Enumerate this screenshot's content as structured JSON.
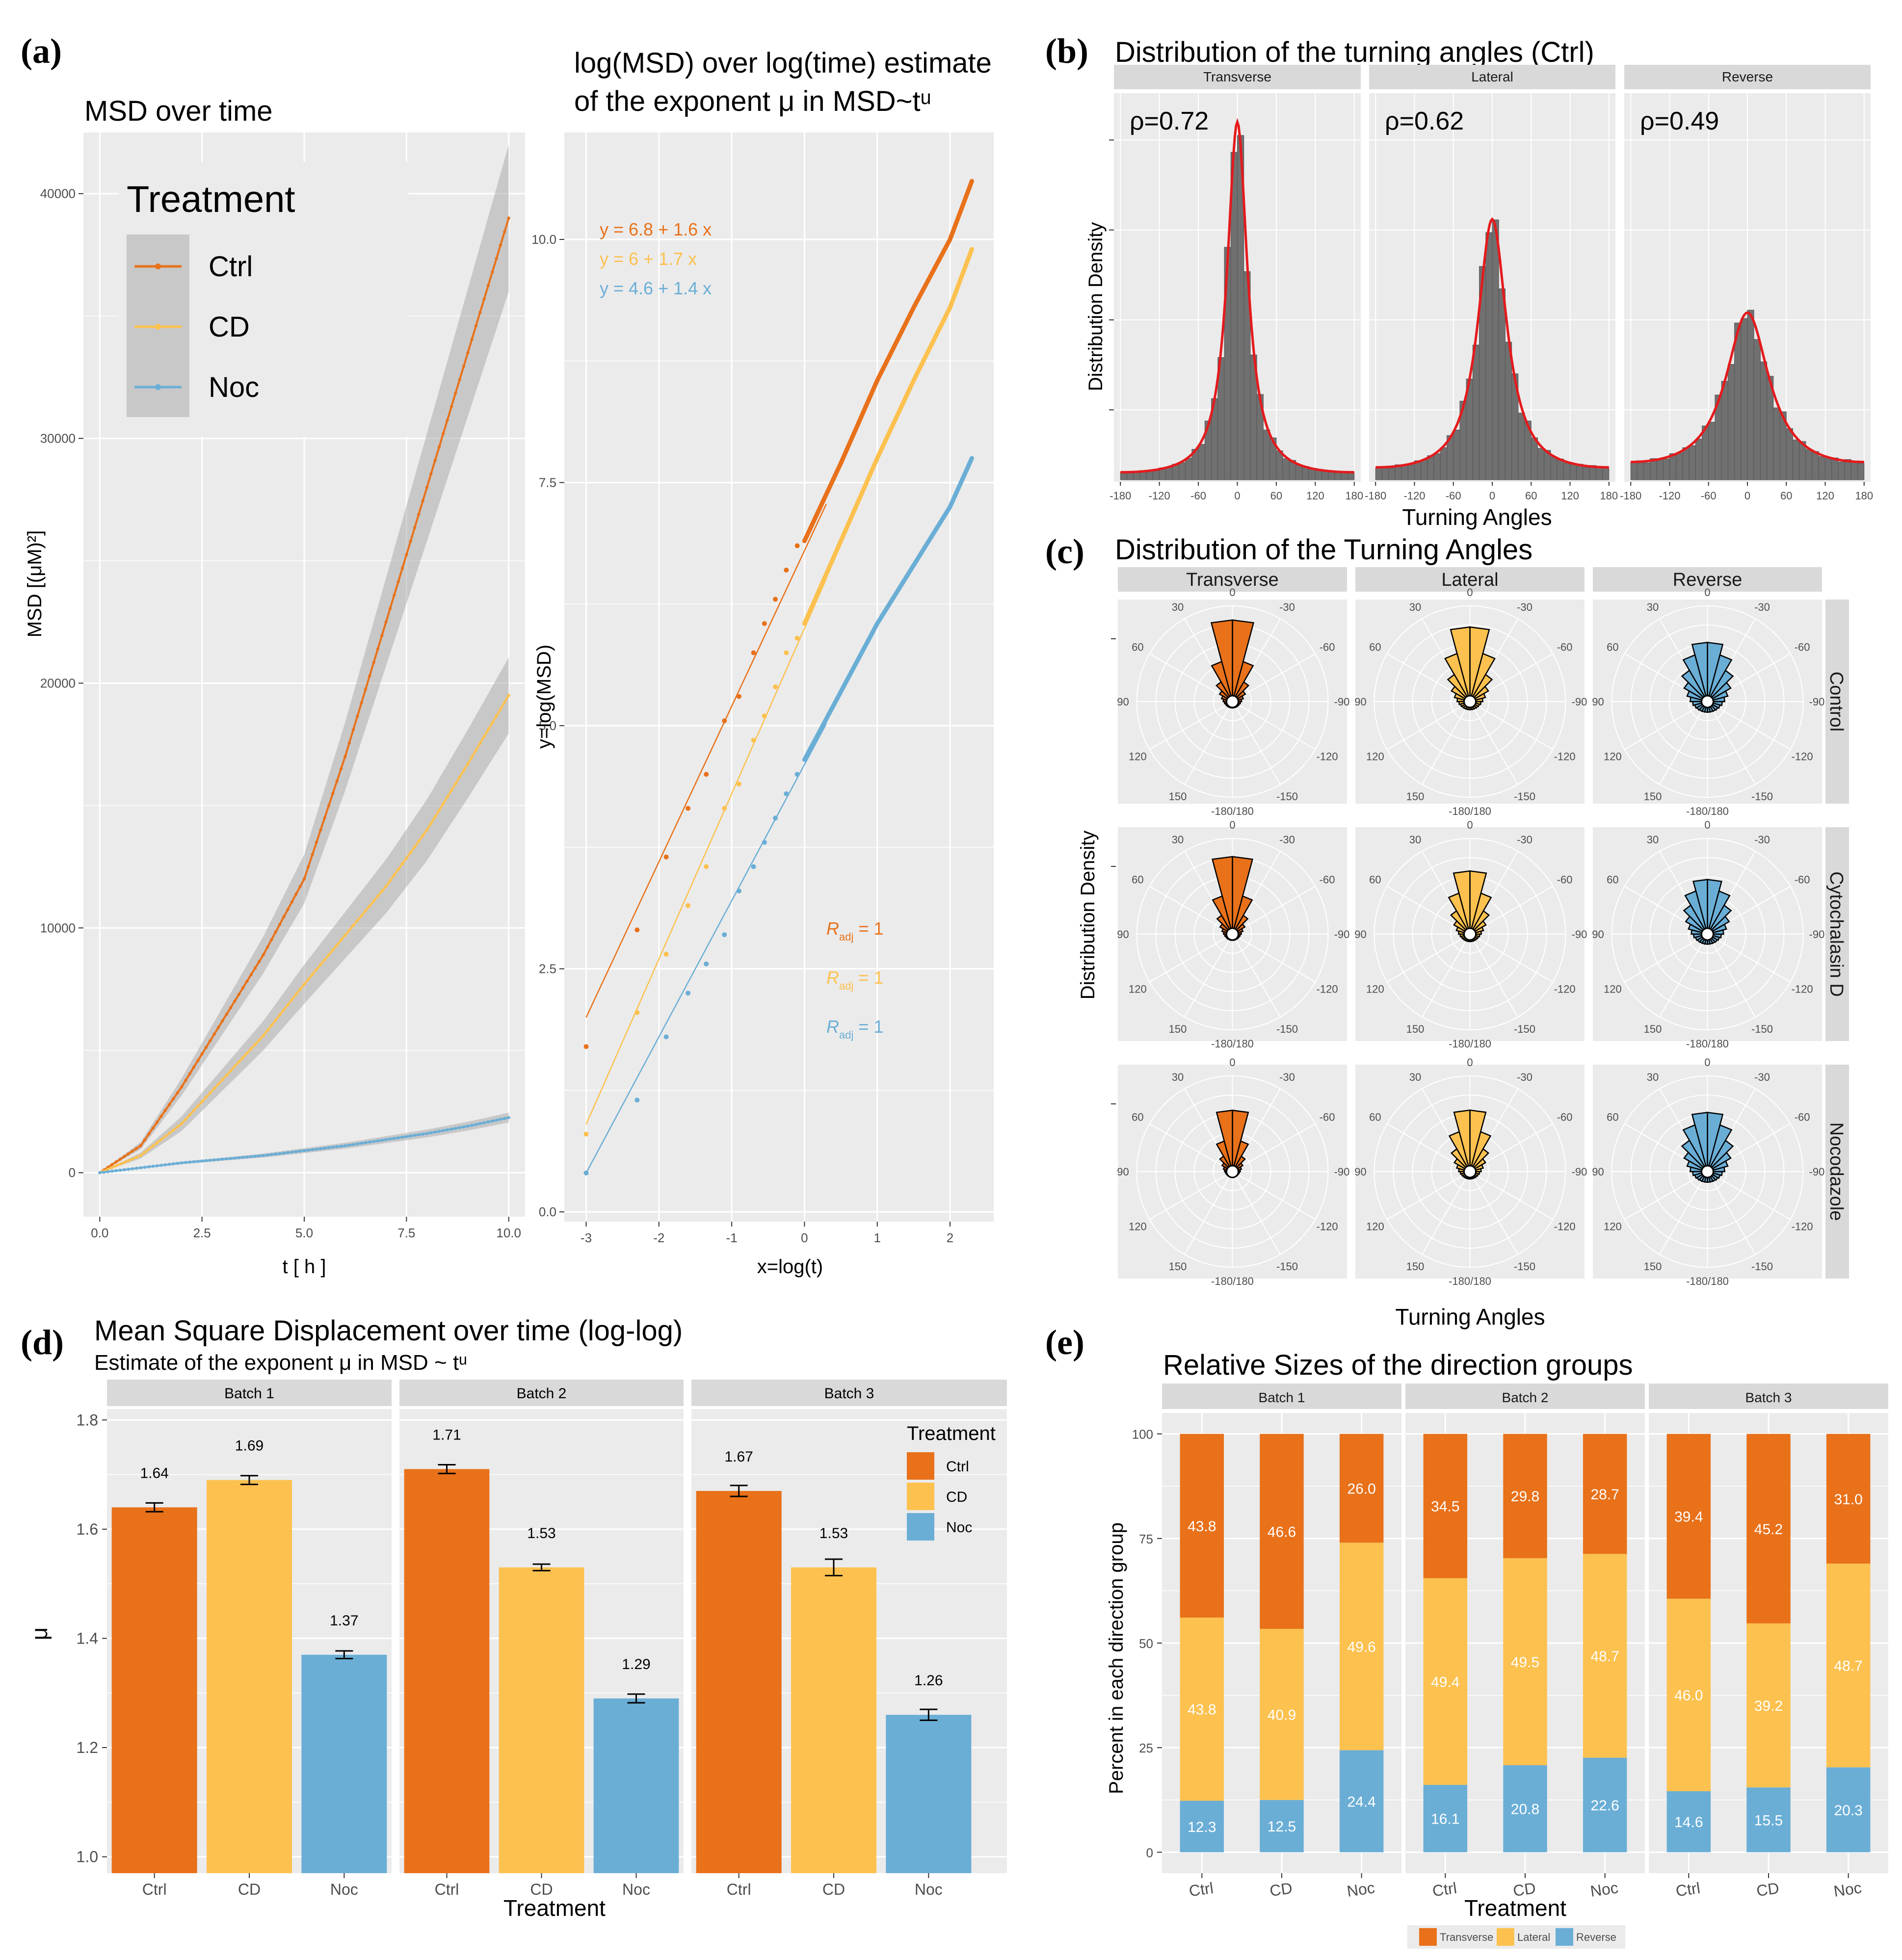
{
  "colors": {
    "ctrl": "#E8711A",
    "cd": "#FCC14F",
    "noc": "#6AAED6",
    "panel_bg": "#EBEBEB",
    "grid": "#FFFFFF",
    "strip": "#D9D9D9",
    "hist": "#707070",
    "fit": "#E41A1C"
  },
  "panel_a": {
    "label": "(a)",
    "left": {
      "title": "MSD over time",
      "ylabel": "MSD [(μM)²]",
      "xlabel": "t [ h ]",
      "legend_title": "Treatment",
      "legend": [
        "Ctrl",
        "CD",
        "Noc"
      ]
    },
    "right": {
      "title_line1": "log(MSD) over log(time) estimate",
      "title_line2": "of the exponent μ in MSD~tᵘ",
      "ylabel": "y=log(MSD)",
      "xlabel": "x=log(t)",
      "equations": [
        "y = 6.8 + 1.6 x",
        "y = 6 + 1.7 x",
        "y = 4.6 + 1.4 x"
      ],
      "r2_main": "R",
      "r2_sub": "adj",
      "r2_value": " = 1"
    }
  },
  "panel_b": {
    "label": "(b)",
    "title": "Distribution of the turning angles (Ctrl)",
    "ylabel": "Distribution Density",
    "xlabel": "Turning Angles",
    "facets": [
      "Transverse",
      "Lateral",
      "Reverse"
    ],
    "rho": [
      "ρ=0.72",
      "ρ=0.62",
      "ρ=0.49"
    ]
  },
  "panel_c": {
    "label": "(c)",
    "title": "Distribution of the Turning Angles",
    "ylabel": "Distribution Density",
    "xlabel": "Turning Angles",
    "cols": [
      "Transverse",
      "Lateral",
      "Reverse"
    ],
    "rows": [
      "Control",
      "Cytochalasin D",
      "Nocodazole"
    ]
  },
  "panel_d": {
    "label": "(d)",
    "title": "Mean Square Displacement over time (log-log)",
    "subtitle": "Estimate of the exponent μ in MSD ~ tᵘ",
    "ylabel": "μ",
    "xlabel": "Treatment",
    "legend_title": "Treatment",
    "legend": [
      "Ctrl",
      "CD",
      "Noc"
    ]
  },
  "panel_e": {
    "label": "(e)",
    "title": "Relative Sizes of the direction groups",
    "ylabel": "Percent in each direction group",
    "xlabel": "Treatment",
    "legend": [
      "Transverse",
      "Lateral",
      "Reverse"
    ]
  },
  "chart_data": [
    {
      "id": "a_left",
      "type": "line",
      "title": "MSD over time",
      "xlabel": "t [ h ]",
      "ylabel": "MSD [(μM)²]",
      "xlim": [
        -0.4,
        10.4
      ],
      "ylim": [
        -1800,
        42500
      ],
      "xticks": [
        0,
        2.5,
        5,
        7.5,
        10
      ],
      "xtick_labels": [
        "0.0",
        "2.5",
        "5.0",
        "7.5",
        "10.0"
      ],
      "yticks": [
        0,
        10000,
        20000,
        30000,
        40000
      ],
      "ytick_labels": [
        "0",
        "10000",
        "20000",
        "30000",
        "40000"
      ],
      "x": [
        0,
        1,
        2,
        3,
        4,
        5,
        6,
        7,
        8,
        9,
        10
      ],
      "series": [
        {
          "name": "Ctrl",
          "color": "#E8711A",
          "values": [
            0,
            1100,
            3500,
            6200,
            8900,
            12000,
            17000,
            22500,
            28000,
            33500,
            39000
          ],
          "band": [
            0,
            150,
            350,
            550,
            750,
            1000,
            1400,
            1800,
            2200,
            2600,
            3000
          ]
        },
        {
          "name": "CD",
          "color": "#FCC14F",
          "values": [
            0,
            700,
            2000,
            3800,
            5600,
            7700,
            9700,
            11700,
            14000,
            16700,
            19500
          ],
          "band": [
            0,
            120,
            300,
            450,
            600,
            800,
            950,
            1100,
            1250,
            1400,
            1550
          ]
        },
        {
          "name": "Noc",
          "color": "#6AAED6",
          "values": [
            0,
            200,
            400,
            550,
            700,
            900,
            1100,
            1350,
            1600,
            1900,
            2250
          ],
          "band": [
            0,
            30,
            50,
            60,
            80,
            100,
            120,
            140,
            160,
            180,
            200
          ]
        }
      ]
    },
    {
      "id": "a_right",
      "type": "scatter",
      "title": "log(MSD) over log(time) estimate of the exponent μ in MSD~tᵘ",
      "xlabel": "x=log(t)",
      "ylabel": "y=log(MSD)",
      "xlim": [
        -3.3,
        2.6
      ],
      "ylim": [
        -0.1,
        11.1
      ],
      "xticks": [
        -3,
        -2,
        -1,
        0,
        1,
        2
      ],
      "xtick_labels": [
        "-3",
        "-2",
        "-1",
        "0",
        "1",
        "2"
      ],
      "yticks": [
        0,
        2.5,
        5,
        7.5,
        10
      ],
      "ytick_labels": [
        "0.0",
        "2.5",
        "5.0",
        "7.5",
        "10.0"
      ],
      "series": [
        {
          "name": "Ctrl",
          "color": "#E8711A",
          "intercept": 6.8,
          "slope": 1.6,
          "x": [
            -3.0,
            -2.3,
            -1.9,
            -1.6,
            -1.35,
            -1.1,
            -0.9,
            -0.7,
            -0.55,
            -0.4,
            -0.25,
            -0.1
          ],
          "y": [
            1.7,
            2.9,
            3.65,
            4.15,
            4.5,
            5.05,
            5.3,
            5.75,
            6.05,
            6.3,
            6.6,
            6.85
          ]
        },
        {
          "name": "CD",
          "color": "#FCC14F",
          "intercept": 6.0,
          "slope": 1.7,
          "x": [
            -3.0,
            -2.3,
            -1.9,
            -1.6,
            -1.35,
            -1.1,
            -0.9,
            -0.7,
            -0.55,
            -0.4,
            -0.25,
            -0.1
          ],
          "y": [
            0.8,
            2.05,
            2.65,
            3.15,
            3.55,
            4.15,
            4.4,
            4.85,
            5.1,
            5.4,
            5.75,
            5.9
          ]
        },
        {
          "name": "Noc",
          "color": "#6AAED6",
          "intercept": 4.6,
          "slope": 1.4,
          "x": [
            -3.0,
            -2.3,
            -1.9,
            -1.6,
            -1.35,
            -1.1,
            -0.9,
            -0.7,
            -0.55,
            -0.4,
            -0.25,
            -0.1
          ],
          "y": [
            0.4,
            1.15,
            1.8,
            2.25,
            2.55,
            2.85,
            3.3,
            3.55,
            3.8,
            4.05,
            4.3,
            4.5
          ]
        }
      ]
    },
    {
      "id": "b",
      "type": "bar",
      "title": "Distribution of the turning angles (Ctrl)",
      "xlabel": "Turning Angles",
      "ylabel": "Distribution Density",
      "xlim": [
        -190,
        190
      ],
      "ylim": [
        0,
        1.08
      ],
      "xticks": [
        -180,
        -120,
        -60,
        0,
        60,
        120,
        180
      ],
      "xtick_labels": [
        "-180",
        "-120",
        "-60",
        "0",
        "60",
        "120",
        "180"
      ],
      "bin_width": 10,
      "facets": [
        {
          "name": "Transverse",
          "rho": 0.72,
          "peak": 1.0
        },
        {
          "name": "Lateral",
          "rho": 0.62,
          "peak": 0.73
        },
        {
          "name": "Reverse",
          "rho": 0.49,
          "peak": 0.47
        }
      ]
    },
    {
      "id": "c",
      "type": "bar",
      "title": "Distribution of the Turning Angles",
      "subtype": "polar",
      "angle_labels": [
        "0",
        "-30",
        "-60",
        "-90",
        "-120",
        "-150",
        "-180/180",
        "150",
        "120",
        "90",
        "60",
        "30"
      ],
      "angles": [
        0,
        -30,
        -60,
        -90,
        -120,
        -150,
        180,
        150,
        120,
        90,
        60,
        30
      ],
      "rows": [
        "Control",
        "Cytochalasin D",
        "Nocodazole"
      ],
      "cols": [
        "Transverse",
        "Lateral",
        "Reverse"
      ],
      "colors": [
        "#E8711A",
        "#FCC14F",
        "#6AAED6"
      ],
      "rho": [
        [
          0.72,
          0.62,
          0.49
        ],
        [
          0.72,
          0.62,
          0.49
        ],
        [
          0.72,
          0.62,
          0.49
        ]
      ],
      "scale": [
        [
          1.0,
          0.85,
          0.65
        ],
        [
          0.95,
          0.72,
          0.6
        ],
        [
          0.75,
          0.7,
          0.65
        ]
      ]
    },
    {
      "id": "d",
      "type": "bar",
      "title": "Mean Square Displacement over time (log-log)",
      "xlabel": "Treatment",
      "ylabel": "μ",
      "ylim": [
        0.97,
        1.82
      ],
      "yticks": [
        1.0,
        1.2,
        1.4,
        1.6,
        1.8
      ],
      "ytick_labels": [
        "1.0",
        "1.2",
        "1.4",
        "1.6",
        "1.8"
      ],
      "categories": [
        "Ctrl",
        "CD",
        "Noc"
      ],
      "facets": [
        {
          "name": "Batch 1",
          "values": [
            1.64,
            1.69,
            1.37
          ],
          "labels": [
            "1.64",
            "1.69",
            "1.37"
          ],
          "err": [
            0.008,
            0.008,
            0.007
          ]
        },
        {
          "name": "Batch 2",
          "values": [
            1.71,
            1.53,
            1.29
          ],
          "labels": [
            "1.71",
            "1.53",
            "1.29"
          ],
          "err": [
            0.008,
            0.006,
            0.008
          ]
        },
        {
          "name": "Batch 3",
          "values": [
            1.67,
            1.53,
            1.26
          ],
          "labels": [
            "1.67",
            "1.53",
            "1.26"
          ],
          "err": [
            0.01,
            0.015,
            0.01
          ]
        }
      ]
    },
    {
      "id": "e",
      "type": "bar",
      "stacked": true,
      "title": "Relative Sizes of the direction groups",
      "xlabel": "Treatment",
      "ylabel": "Percent in each direction group",
      "ylim": [
        -5,
        105
      ],
      "yticks": [
        0,
        25,
        50,
        75,
        100
      ],
      "ytick_labels": [
        "0",
        "25",
        "50",
        "75",
        "100"
      ],
      "categories": [
        "Ctrl",
        "CD",
        "Noc"
      ],
      "stack_order": [
        "Reverse",
        "Lateral",
        "Transverse"
      ],
      "facets": [
        {
          "name": "Batch 1",
          "Transverse": [
            43.8,
            46.6,
            26.0
          ],
          "Lateral": [
            43.8,
            40.9,
            49.6
          ],
          "Reverse": [
            12.3,
            12.5,
            24.4
          ],
          "T_labels": [
            "43.8",
            "46.6",
            "26.0"
          ],
          "L_labels": [
            "43.8",
            "40.9",
            "49.6"
          ],
          "R_labels": [
            "12.3",
            "12.5",
            "24.4"
          ]
        },
        {
          "name": "Batch 2",
          "Transverse": [
            34.5,
            29.8,
            28.7
          ],
          "Lateral": [
            49.4,
            49.5,
            48.7
          ],
          "Reverse": [
            16.1,
            20.8,
            22.6
          ],
          "T_labels": [
            "34.5",
            "29.8",
            "28.7"
          ],
          "L_labels": [
            "49.4",
            "49.5",
            "48.7"
          ],
          "R_labels": [
            "16.1",
            "20.8",
            "22.6"
          ]
        },
        {
          "name": "Batch 3",
          "Transverse": [
            39.4,
            45.2,
            31.0
          ],
          "Lateral": [
            46.0,
            39.2,
            48.7
          ],
          "Reverse": [
            14.6,
            15.5,
            20.3
          ],
          "T_labels": [
            "39.4",
            "45.2",
            "31.0"
          ],
          "L_labels": [
            "46.0",
            "39.2",
            "48.7"
          ],
          "R_labels": [
            "14.6",
            "15.5",
            "20.3"
          ]
        }
      ]
    }
  ]
}
